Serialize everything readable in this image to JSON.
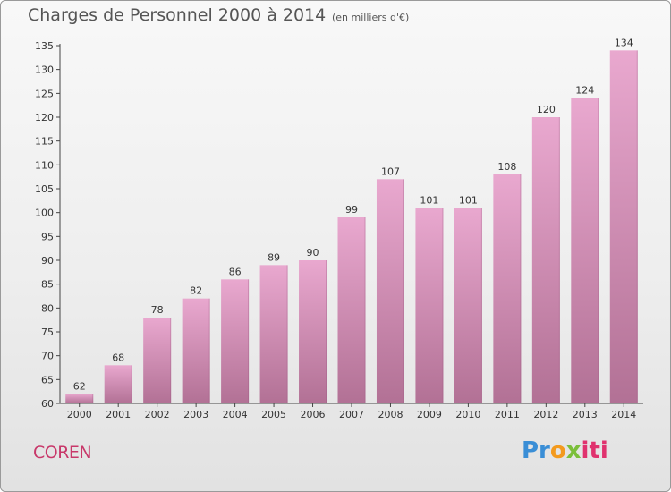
{
  "chart_data": {
    "type": "bar",
    "title": "Charges de Personnel 2000 à 2014",
    "subtitle": "(en milliers d'€)",
    "categories": [
      "2000",
      "2001",
      "2002",
      "2003",
      "2004",
      "2005",
      "2006",
      "2007",
      "2008",
      "2009",
      "2010",
      "2011",
      "2012",
      "2013",
      "2014"
    ],
    "values": [
      62,
      68,
      78,
      82,
      86,
      89,
      90,
      99,
      107,
      101,
      101,
      108,
      120,
      124,
      134
    ],
    "ylim": [
      60,
      135
    ],
    "yticks": [
      60,
      65,
      70,
      75,
      80,
      85,
      90,
      95,
      100,
      105,
      110,
      115,
      120,
      125,
      130,
      135
    ],
    "xlabel": "",
    "ylabel": "",
    "grid": false,
    "bar_color_top": "#e9a8cf",
    "bar_color_bottom": "#b27195"
  },
  "footer": {
    "commune": "COREN",
    "brand": "Proxiti",
    "brand_parts": [
      "Pr",
      "o",
      "x",
      "iti"
    ]
  },
  "colors": {
    "commune": "#c8386a",
    "brand_p": "#3a8ed6",
    "brand_o": "#f39a1e",
    "brand_x": "#7bbf3a",
    "brand_iti": "#e0326e"
  }
}
